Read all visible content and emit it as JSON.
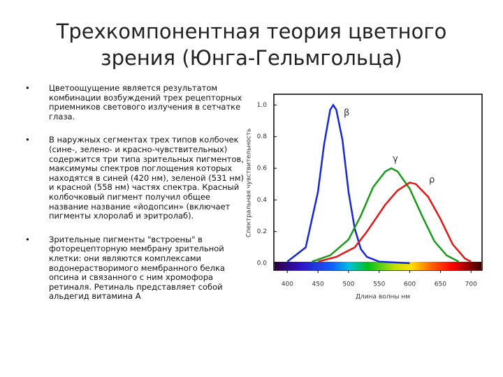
{
  "title_lines": [
    "Трехкомпонентная теория цветного",
    "зрения (Юнга-Гельмгольца)"
  ],
  "bullets": [
    "Цветоощущение является  результатом комбинации возбуждений трех рецепторных приемников светового излучения в сетчатке глаза.",
    "В наружных сегментах трех типов колбочек (сине-, зелено- и красно-чувствительных) содержится три типа зрительных пигментов, максимумы спектров поглощения которых находятся в синей (420 нм), зеленой (531 нм) и красной (558 нм) частях спектра. Красный колбочковый пигмент получил общее название название «йодопсин» (включает пигменты хлоролаб и эритролаб).",
    "Зрительные пигменты \"встроены\" в фоторецепторную мембрану зрительной клетки: они являются комплексами водонерастворимого мембранного белка опсина и связанного с ним хромофора ретиналя. Ретиналь представляет собой альдегид витамина А"
  ],
  "chart_data": {
    "type": "line",
    "x_label": "Длина волны нм",
    "y_label": "Спектральная чувствительность",
    "xlim": [
      378,
      718
    ],
    "ylim": [
      -0.044,
      1.068
    ],
    "xticks": [
      400,
      450,
      500,
      550,
      600,
      650,
      700
    ],
    "yticks": [
      {
        "value": 0,
        "label": "0.0"
      },
      {
        "value": 0.2,
        "label": "0.2"
      },
      {
        "value": 0.4,
        "label": "0.4"
      },
      {
        "value": 0.6,
        "label": "0.6"
      },
      {
        "value": 0.8,
        "label": "0.8"
      },
      {
        "value": 1,
        "label": "1.0"
      }
    ],
    "series": [
      {
        "name": "β",
        "color": "#1428d8",
        "x": [
          400,
          430,
          450,
          460,
          470,
          475,
          480,
          490,
          500,
          510,
          520,
          530,
          550,
          600
        ],
        "values": [
          0.01,
          0.1,
          0.45,
          0.75,
          0.97,
          1.0,
          0.97,
          0.78,
          0.45,
          0.22,
          0.09,
          0.04,
          0.01,
          0
        ]
      },
      {
        "name": "γ",
        "color": "#1a9a1a",
        "x": [
          440,
          470,
          500,
          520,
          540,
          560,
          570,
          580,
          600,
          620,
          640,
          660,
          680
        ],
        "values": [
          0.01,
          0.05,
          0.15,
          0.3,
          0.48,
          0.58,
          0.6,
          0.58,
          0.47,
          0.3,
          0.14,
          0.05,
          0.01
        ]
      },
      {
        "name": "ρ",
        "color": "#e01818",
        "x": [
          450,
          480,
          510,
          530,
          560,
          580,
          600,
          610,
          630,
          650,
          670,
          690,
          700
        ],
        "values": [
          0.01,
          0.04,
          0.1,
          0.2,
          0.37,
          0.46,
          0.51,
          0.5,
          0.42,
          0.28,
          0.12,
          0.03,
          0.01
        ]
      }
    ]
  }
}
